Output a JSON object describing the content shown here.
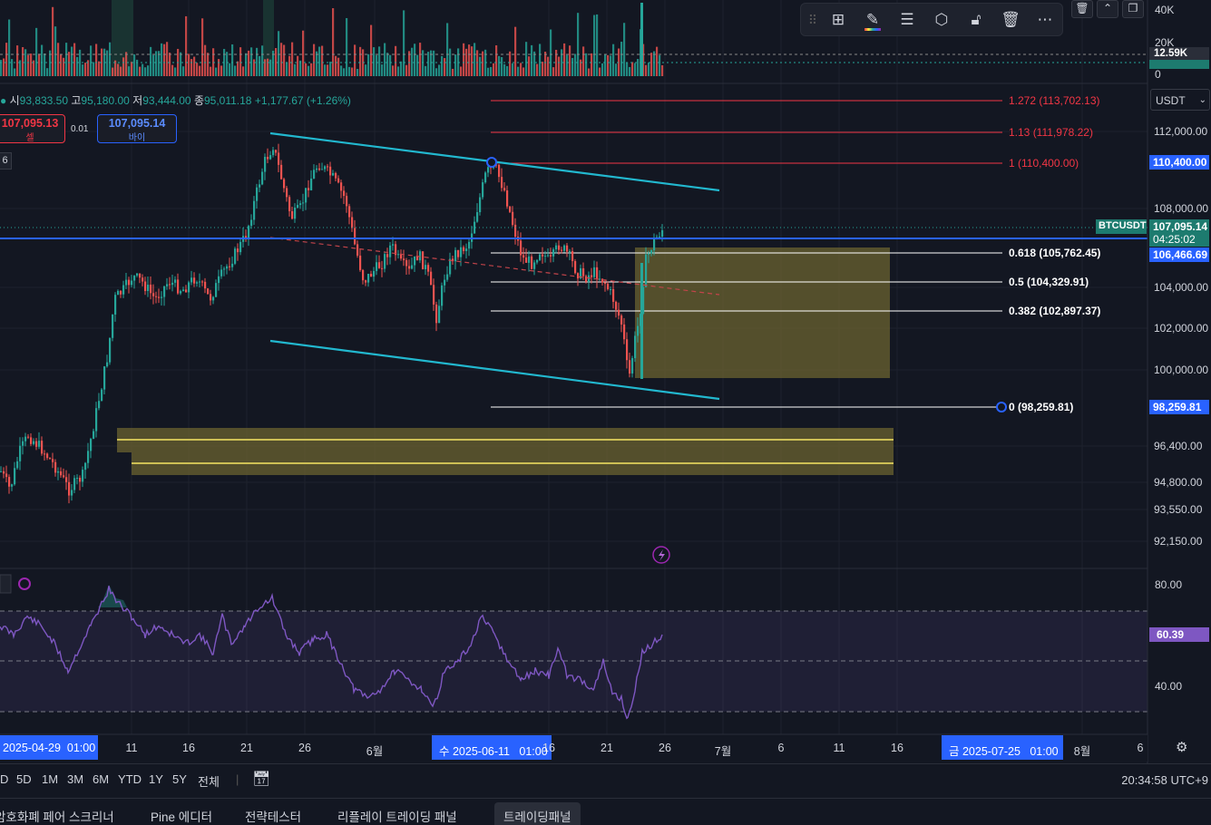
{
  "ohlc": {
    "open_label": "시",
    "open": "93,833.50",
    "high_label": "고",
    "high": "95,180.00",
    "low_label": "저",
    "low": "93,444.00",
    "close_label": "종",
    "close": "95,011.18",
    "change": "+1,177.67 (+1.26%)"
  },
  "trade": {
    "sell_price": "107,095.13",
    "sell_label": "셀",
    "spread": "0.01",
    "buy_price": "107,095.14",
    "buy_label": "바이"
  },
  "interval_badge": "6",
  "currency_select": "USDT",
  "volume_axis": [
    "40K",
    "20K",
    "0"
  ],
  "volume_current": "12.59K",
  "price_axis": [
    "112,000.00",
    "108,000.00",
    "104,000.00",
    "102,000.00",
    "100,000.00",
    "96,400.00",
    "94,800.00",
    "93,550.00",
    "92,150.00"
  ],
  "price_markers": {
    "fib_top": "110,400.00",
    "symbol": "BTCUSDT",
    "last": "107,095.14",
    "countdown": "04:25:02",
    "level": "106,466.69",
    "fib_bottom": "98,259.81"
  },
  "fib_levels": [
    {
      "label": "1.272 (113,702.13)",
      "color": "#f23645"
    },
    {
      "label": "1.13 (111,978.22)",
      "color": "#f23645"
    },
    {
      "label": "1 (110,400.00)",
      "color": "#f23645"
    },
    {
      "label": "0.618 (105,762.45)",
      "color": "#ffffff"
    },
    {
      "label": "0.5 (104,329.91)",
      "color": "#ffffff"
    },
    {
      "label": "0.382 (102,897.37)",
      "color": "#ffffff"
    },
    {
      "label": "0 (98,259.81)",
      "color": "#ffffff"
    }
  ],
  "rsi_axis": [
    "80.00",
    "40.00"
  ],
  "rsi_value": "60.39",
  "time_axis": [
    "11",
    "16",
    "21",
    "26",
    "6월",
    "16",
    "21",
    "26",
    "7월",
    "6",
    "11",
    "16",
    "8월",
    "6"
  ],
  "time_highlights": [
    "2025-04-29  01:00",
    "수 2025-06-11   01:00",
    "금 2025-07-25   01:00"
  ],
  "ranges": [
    "D",
    "5D",
    "1M",
    "3M",
    "6M",
    "YTD",
    "1Y",
    "5Y",
    "전체"
  ],
  "clock": "20:34:58 UTC+9",
  "tabs": [
    "암호화폐 페어 스크리너",
    "Pine 에디터",
    "전략테스터",
    "리플레이 트레이딩 패널",
    "트레이딩패널"
  ],
  "toolbar_icons": [
    "drag-handle-icon",
    "add-objects-icon",
    "pencil-icon",
    "lines-icon",
    "settings-hex-icon",
    "lock-icon",
    "trash-icon",
    "more-icon"
  ],
  "colors": {
    "up": "#26a69a",
    "down": "#ef5350",
    "channel": "#22b8cf",
    "zone": "#6b6330",
    "rsi": "#7e57c2",
    "blue": "#2962ff"
  }
}
